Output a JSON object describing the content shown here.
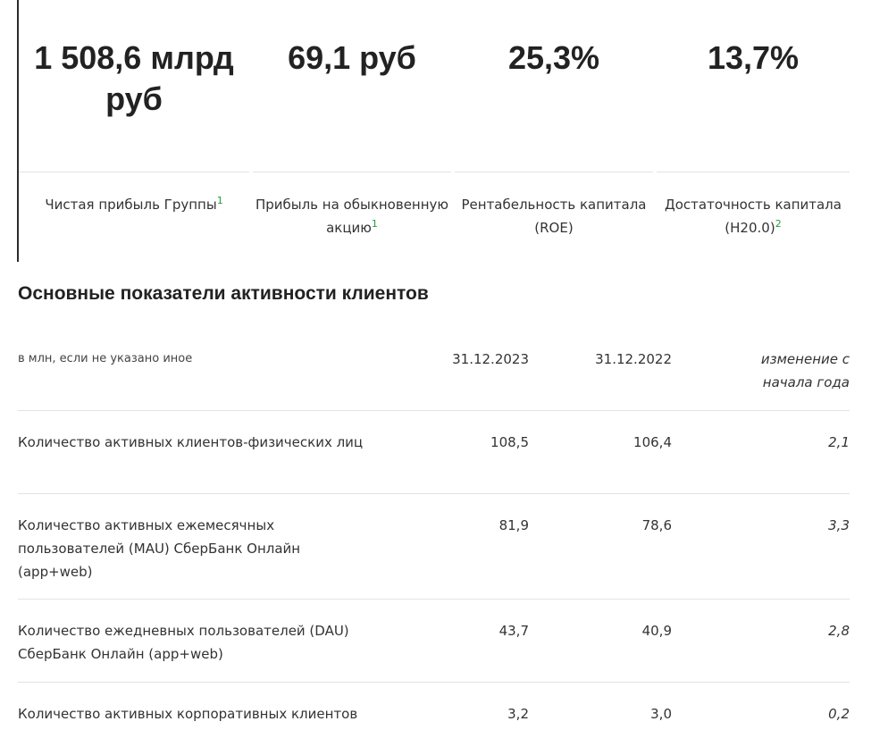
{
  "metrics": [
    {
      "value": "1 508,6 млрд руб",
      "label": "Чистая прибыль Группы",
      "footnote": "1"
    },
    {
      "value": "69,1 руб",
      "label": "Прибыль на обыкновенную акцию",
      "footnote": "1"
    },
    {
      "value": "25,3%",
      "label": "Рентабельность капитала (ROE)",
      "footnote": ""
    },
    {
      "value": "13,7%",
      "label": "Достаточность капитала (Н20.0)",
      "footnote": "2"
    }
  ],
  "section": {
    "title": "Основные показатели активности клиентов",
    "unit_note": "в млн, если не указано иное",
    "columns": [
      "31.12.2023",
      "31.12.2022",
      "изменение с начала года"
    ],
    "rows": [
      {
        "name": "Количество активных клиентов-физических лиц",
        "v2023": "108,5",
        "v2022": "106,4",
        "change": "2,1"
      },
      {
        "name": "Количество активных ежемесячных пользователей (MAU) СберБанк Онлайн (app+web)",
        "v2023": "81,9",
        "v2022": "78,6",
        "change": "3,3"
      },
      {
        "name": "Количество ежедневных пользователей (DAU) СберБанк Онлайн (app+web)",
        "v2023": "43,7",
        "v2022": "40,9",
        "change": "2,8"
      },
      {
        "name": "Количество активных корпоративных клиентов",
        "v2023": "3,2",
        "v2022": "3,0",
        "change": "0,2"
      }
    ]
  },
  "colors": {
    "accent_green": "#21a038",
    "text": "#333333",
    "divider": "#e3e3e3"
  }
}
